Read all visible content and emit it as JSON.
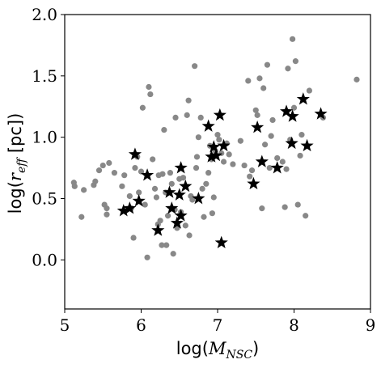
{
  "chart_data": {
    "type": "scatter",
    "xlim": [
      5,
      9
    ],
    "ylim": [
      -0.4,
      2.0
    ],
    "xticks": [
      "5",
      "6",
      "7",
      "8",
      "9"
    ],
    "yticks": [
      "0.0",
      "0.5",
      "1.0",
      "1.5",
      "2.0"
    ],
    "xlabel": {
      "prefix": "log(",
      "symbol": "M",
      "subscript": "NSC",
      "suffix": ")"
    },
    "ylabel": {
      "prefix": "log(",
      "symbol": "r",
      "subscript": "eff",
      "suffix": " [pc])"
    },
    "grid": false,
    "colors": {
      "dots": "#888888",
      "stars": "#000000"
    },
    "series": [
      {
        "marker": "circle",
        "points": [
          [
            5.12,
            0.63
          ],
          [
            5.13,
            0.6
          ],
          [
            5.22,
            0.35
          ],
          [
            5.25,
            0.57
          ],
          [
            5.38,
            0.61
          ],
          [
            5.4,
            0.64
          ],
          [
            5.45,
            0.73
          ],
          [
            5.5,
            0.77
          ],
          [
            5.52,
            0.45
          ],
          [
            5.55,
            0.42
          ],
          [
            5.55,
            0.37
          ],
          [
            5.58,
            0.79
          ],
          [
            5.65,
            0.71
          ],
          [
            5.75,
            0.6
          ],
          [
            5.78,
            0.69
          ],
          [
            5.85,
            0.52
          ],
          [
            5.87,
            0.42
          ],
          [
            5.9,
            0.18
          ],
          [
            5.92,
            0.75
          ],
          [
            5.95,
            0.84
          ],
          [
            5.97,
            0.55
          ],
          [
            6.0,
            0.72
          ],
          [
            6.02,
            1.24
          ],
          [
            6.05,
            0.45
          ],
          [
            6.08,
            0.02
          ],
          [
            6.1,
            1.41
          ],
          [
            6.12,
            1.35
          ],
          [
            6.15,
            0.82
          ],
          [
            6.18,
            0.58
          ],
          [
            6.2,
            0.51
          ],
          [
            6.22,
            0.29
          ],
          [
            6.23,
            0.69
          ],
          [
            6.25,
            0.32
          ],
          [
            6.27,
            0.12
          ],
          [
            6.28,
            0.7
          ],
          [
            6.3,
            1.06
          ],
          [
            6.32,
            0.55
          ],
          [
            6.33,
            0.12
          ],
          [
            6.35,
            0.36
          ],
          [
            6.38,
            0.71
          ],
          [
            6.4,
            0.62
          ],
          [
            6.42,
            0.05
          ],
          [
            6.44,
            0.41
          ],
          [
            6.45,
            1.16
          ],
          [
            6.47,
            0.26
          ],
          [
            6.5,
            0.66
          ],
          [
            6.52,
            0.39
          ],
          [
            6.55,
            0.67
          ],
          [
            6.58,
            0.28
          ],
          [
            6.6,
            1.18
          ],
          [
            6.62,
            1.3
          ],
          [
            6.63,
            0.2
          ],
          [
            6.65,
            0.52
          ],
          [
            6.67,
            0.49
          ],
          [
            6.7,
            1.58
          ],
          [
            6.72,
            0.75
          ],
          [
            6.73,
            0.84
          ],
          [
            6.75,
            1.0
          ],
          [
            6.78,
            1.16
          ],
          [
            6.8,
            0.58
          ],
          [
            6.82,
            0.35
          ],
          [
            6.85,
            0.62
          ],
          [
            6.88,
            0.71
          ],
          [
            6.9,
            0.93
          ],
          [
            6.92,
            0.82
          ],
          [
            6.93,
            0.38
          ],
          [
            6.95,
            0.51
          ],
          [
            6.97,
            0.89
          ],
          [
            7.0,
            1.02
          ],
          [
            7.02,
            0.98
          ],
          [
            7.05,
            0.87
          ],
          [
            7.08,
            0.8
          ],
          [
            7.12,
            0.95
          ],
          [
            7.15,
            0.86
          ],
          [
            7.2,
            0.78
          ],
          [
            7.3,
            0.97
          ],
          [
            7.35,
            0.77
          ],
          [
            7.4,
            1.46
          ],
          [
            7.42,
            0.68
          ],
          [
            7.45,
            0.73
          ],
          [
            7.5,
            1.22
          ],
          [
            7.52,
            1.18
          ],
          [
            7.55,
            1.48
          ],
          [
            7.58,
            0.42
          ],
          [
            7.6,
            1.4
          ],
          [
            7.62,
            0.94
          ],
          [
            7.65,
            1.59
          ],
          [
            7.68,
            0.75
          ],
          [
            7.7,
            1.01
          ],
          [
            7.72,
            1.14
          ],
          [
            7.78,
            0.83
          ],
          [
            7.85,
            0.8
          ],
          [
            7.88,
            0.43
          ],
          [
            7.9,
            0.74
          ],
          [
            7.92,
            1.56
          ],
          [
            7.95,
            0.98
          ],
          [
            7.98,
            1.8
          ],
          [
            8.0,
            1.24
          ],
          [
            8.02,
            1.62
          ],
          [
            8.05,
            0.45
          ],
          [
            8.08,
            0.85
          ],
          [
            8.1,
            1.02
          ],
          [
            8.15,
            0.36
          ],
          [
            8.2,
            1.38
          ],
          [
            8.38,
            1.16
          ],
          [
            8.82,
            1.47
          ]
        ]
      },
      {
        "marker": "star",
        "points": [
          [
            5.77,
            0.4
          ],
          [
            5.85,
            0.42
          ],
          [
            5.92,
            0.86
          ],
          [
            5.97,
            0.48
          ],
          [
            6.08,
            0.69
          ],
          [
            6.22,
            0.24
          ],
          [
            6.37,
            0.55
          ],
          [
            6.4,
            0.42
          ],
          [
            6.47,
            0.3
          ],
          [
            6.5,
            0.53
          ],
          [
            6.52,
            0.36
          ],
          [
            6.52,
            0.75
          ],
          [
            6.58,
            0.6
          ],
          [
            6.75,
            0.5
          ],
          [
            6.88,
            1.09
          ],
          [
            6.92,
            0.84
          ],
          [
            6.95,
            0.92
          ],
          [
            6.98,
            0.85
          ],
          [
            7.03,
            1.18
          ],
          [
            7.05,
            0.14
          ],
          [
            7.08,
            0.93
          ],
          [
            7.47,
            0.62
          ],
          [
            7.52,
            1.08
          ],
          [
            7.58,
            0.8
          ],
          [
            7.78,
            0.75
          ],
          [
            7.9,
            1.21
          ],
          [
            7.97,
            0.95
          ],
          [
            7.98,
            1.17
          ],
          [
            8.12,
            1.31
          ],
          [
            8.17,
            0.93
          ],
          [
            8.35,
            1.19
          ]
        ]
      }
    ]
  }
}
